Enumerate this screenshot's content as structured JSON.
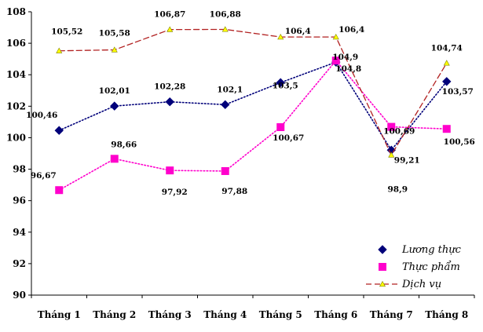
{
  "chart_data": {
    "type": "line",
    "title": "",
    "xlabel": "",
    "ylabel": "",
    "ylim": [
      90,
      108
    ],
    "yticks": [
      90,
      92,
      94,
      96,
      98,
      100,
      102,
      104,
      106,
      108
    ],
    "ytick_labels": [
      "90",
      "92",
      "94",
      "96",
      "98",
      "100",
      "102",
      "104",
      "106",
      "108"
    ],
    "categories": [
      "Tháng 1",
      "Tháng 2",
      "Tháng 3",
      "Tháng 4",
      "Tháng 5",
      "Tháng 6",
      "Tháng 7",
      "Tháng 8"
    ],
    "grid": false,
    "legend_position": "bottom-right",
    "series": [
      {
        "name": "Lương thực",
        "color": "#00007a",
        "marker": "diamond",
        "line_style": "dotted",
        "values": [
          100.46,
          102.01,
          102.28,
          102.1,
          103.5,
          104.8,
          99.21,
          103.57
        ],
        "labels": [
          "100,46",
          "102,01",
          "102,28",
          "102,1",
          "103,5",
          "104,8",
          "99,21",
          "103,57"
        ]
      },
      {
        "name": "Thực phẩm",
        "color": "#ff00cc",
        "marker": "square",
        "line_style": "dotted",
        "values": [
          96.67,
          98.66,
          97.92,
          97.88,
          100.67,
          104.9,
          100.69,
          100.56
        ],
        "labels": [
          "96,67",
          "98,66",
          "97,92",
          "97,88",
          "100,67",
          "104,9",
          "100,69",
          "100,56"
        ]
      },
      {
        "name": "Dịch vụ",
        "color": "#b22222",
        "marker": "triangle",
        "line_style": "dashed",
        "values": [
          105.52,
          105.58,
          106.87,
          106.88,
          106.4,
          106.4,
          98.9,
          104.74
        ],
        "labels": [
          "105,52",
          "105,58",
          "106,87",
          "106,88",
          "106,4",
          "106,4",
          "98,9",
          "104,74"
        ]
      }
    ]
  }
}
